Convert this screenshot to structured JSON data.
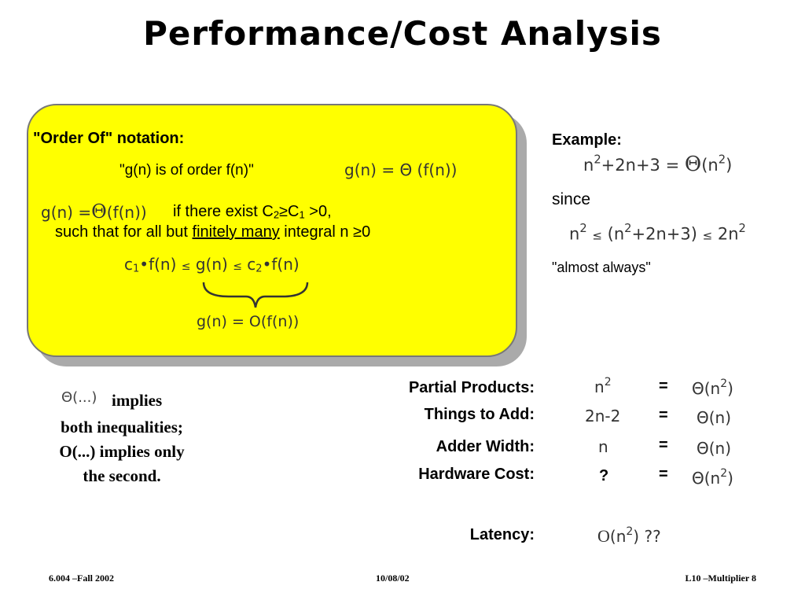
{
  "title": "Performance/Cost Analysis",
  "notation_box": {
    "heading": "\"Order Of\" notation:",
    "quote": "\"g(n) is of order f(n)\"",
    "g_eq_theta": "g(n) = Θ (f(n))",
    "left_g": "g(n) =",
    "left_theta": "Θ",
    "left_f": "(f(n))",
    "cond_prefix": "if there exist  C",
    "cond_c2_sub": "2",
    "cond_mid": "≥C",
    "cond_c1_sub": "1",
    "cond_suffix": " >0,",
    "line2_prefix": "such that for all but ",
    "line2_underlined": "finitely many",
    "line2_suffix": " integral  n ≥0",
    "ineq_c1": "c",
    "ineq_c1_sub": "1",
    "ineq_mid1": "•f(n)",
    "ineq_le1": "≤",
    "ineq_g": "g(n)",
    "ineq_le2": "≤",
    "ineq_c2": "c",
    "ineq_c2_sub": "2",
    "ineq_mid2": "•f(n)",
    "g_eq_O": "g(n) = O(f(n))"
  },
  "example": {
    "heading": "Example:",
    "eq_n": "n",
    "eq_exp": "2",
    "eq_rest": "+2n+3 =",
    "eq_theta": "Θ",
    "eq_open": "(n",
    "eq_exp2": "2",
    "eq_close": ")",
    "since": "since",
    "ineq_n": "n",
    "ineq_exp": "2",
    "ineq_le": "≤",
    "ineq_mid": "(n",
    "ineq_mid_exp": "2",
    "ineq_mid_rest": "+2n+3)",
    "ineq_le2": "≤",
    "ineq_right": "2n",
    "ineq_right_exp": "2",
    "almost": "\"almost always\""
  },
  "side_note": {
    "theta": "Θ(...)",
    "l1": "implies",
    "l2": "both inequalities;",
    "l3": "O(...) implies only",
    "l4": "the second."
  },
  "table": {
    "rows": [
      {
        "label": "Partial Products:",
        "value": "n",
        "value_exp": "2",
        "eq": "=",
        "order": "Θ(n",
        "order_exp": "2",
        "order_close": ")"
      },
      {
        "label": "Things to Add:",
        "value": "2n-2",
        "value_exp": "",
        "eq": "=",
        "order": "Θ(n)",
        "order_exp": "",
        "order_close": ""
      },
      {
        "label": "Adder Width:",
        "value": "n",
        "value_exp": "",
        "eq": "=",
        "order": "Θ(n)",
        "order_exp": "",
        "order_close": ""
      },
      {
        "label": "Hardware Cost:",
        "value": "?",
        "value_exp": "",
        "eq": "=",
        "order": "Θ(n",
        "order_exp": "2",
        "order_close": ")"
      }
    ],
    "latency_label": "Latency:",
    "latency_O": "O",
    "latency_open": "(n",
    "latency_exp": "2",
    "latency_close": ") ??"
  },
  "footer": {
    "left": "6.004 –Fall  2002",
    "center": "10/08/02",
    "right": "L10 –Multiplier  8"
  }
}
